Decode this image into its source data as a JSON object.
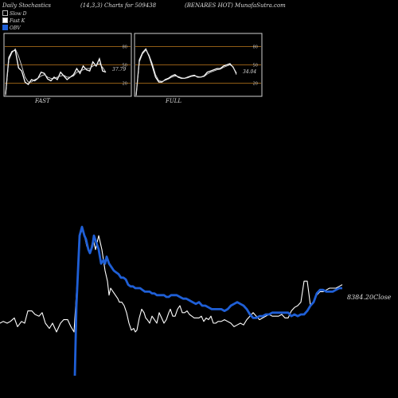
{
  "header": {
    "left": "Daily Stochastics",
    "center": "(14,3,3) Charts for 509438",
    "right": "(BENARES HOT) MunafaSutra.com"
  },
  "legend": [
    {
      "label": "Slow D",
      "color": "#000000"
    },
    {
      "label": "Fast K",
      "color": "#ffffff"
    },
    {
      "label": "OBV",
      "color": "#1f5fd6"
    }
  ],
  "colors": {
    "background": "#000000",
    "grid": "#c07a1c",
    "stoch": "#ffffff",
    "obv": "#1f5fd6",
    "close": "#ffffff"
  },
  "chart_data": [
    {
      "type": "line",
      "title": "FAST",
      "ylim": [
        0,
        100
      ],
      "yticks": [
        20,
        50,
        80
      ],
      "last_value_label": "37.79",
      "series": [
        {
          "name": "Fast K",
          "values": [
            2,
            62,
            72,
            74,
            45,
            40,
            22,
            18,
            26,
            24,
            28,
            38,
            36,
            27,
            24,
            30,
            26,
            38,
            32,
            26,
            30,
            34,
            44,
            36,
            48,
            42,
            40,
            55,
            48,
            60,
            40,
            38
          ]
        },
        {
          "name": "Slow D",
          "values": [
            0,
            58,
            70,
            76,
            64,
            48,
            30,
            22,
            22,
            26,
            28,
            32,
            34,
            30,
            28,
            28,
            30,
            32,
            33,
            30,
            30,
            32,
            38,
            40,
            42,
            44,
            44,
            48,
            50,
            52,
            46,
            38
          ]
        }
      ]
    },
    {
      "type": "line",
      "title": "FULL",
      "ylim": [
        0,
        100
      ],
      "yticks": [
        20,
        50,
        80
      ],
      "last_value_label": "34.04",
      "series": [
        {
          "name": "Fast K",
          "values": [
            0,
            58,
            70,
            76,
            64,
            48,
            30,
            22,
            22,
            26,
            28,
            32,
            34,
            30,
            28,
            28,
            30,
            32,
            33,
            30,
            30,
            32,
            38,
            40,
            42,
            44,
            44,
            48,
            50,
            52,
            46,
            36
          ]
        },
        {
          "name": "Slow D",
          "values": [
            0,
            55,
            68,
            74,
            66,
            52,
            34,
            24,
            23,
            25,
            27,
            30,
            32,
            31,
            29,
            28,
            29,
            31,
            32,
            31,
            30,
            31,
            35,
            38,
            40,
            42,
            43,
            46,
            48,
            50,
            47,
            34
          ]
        }
      ]
    },
    {
      "type": "line",
      "title": "",
      "ylim": [
        0,
        100
      ],
      "close_label": "8384.20Close",
      "series": [
        {
          "name": "Close",
          "x": [
            0,
            4,
            9,
            13,
            18,
            22,
            27,
            31,
            35,
            40,
            44,
            49,
            53,
            57,
            62,
            66,
            71,
            76,
            80,
            85,
            89,
            93,
            98,
            100,
            102,
            104,
            106,
            108,
            109,
            111,
            113,
            115,
            117,
            120,
            122,
            124,
            126,
            128,
            130,
            132,
            135,
            137,
            139,
            142,
            145,
            148,
            150,
            153,
            156,
            159,
            162,
            165,
            168,
            170,
            172,
            175,
            178,
            181,
            183,
            185,
            188,
            191,
            194,
            197,
            200,
            203,
            206,
            209,
            212,
            214,
            217,
            220,
            223,
            226,
            229,
            232,
            235,
            238,
            241,
            244,
            247,
            250,
            253,
            256,
            259,
            262,
            265,
            268,
            271,
            274,
            278,
            282,
            286,
            290,
            294,
            298,
            302,
            306,
            310,
            314,
            318,
            322,
            326,
            330,
            334,
            338,
            342,
            346,
            350,
            354,
            358,
            362,
            366,
            370,
            374,
            378,
            382,
            386,
            390,
            394,
            398,
            402,
            406,
            410,
            414,
            418,
            422,
            426,
            430
          ],
          "values": [
            30,
            31,
            30,
            31,
            33,
            28,
            31,
            30,
            37,
            37,
            35,
            34,
            36,
            30,
            27,
            30,
            25,
            30,
            32,
            32,
            28,
            25,
            62,
            80,
            82,
            84,
            80,
            76,
            74,
            72,
            70,
            74,
            78,
            72,
            76,
            80,
            76,
            72,
            66,
            60,
            54,
            46,
            50,
            48,
            46,
            44,
            42,
            42,
            40,
            36,
            30,
            26,
            27,
            25,
            26,
            33,
            38,
            36,
            33,
            32,
            30,
            34,
            32,
            30,
            36,
            33,
            30,
            32,
            36,
            38,
            34,
            34,
            38,
            40,
            36,
            36,
            37,
            35,
            34,
            33,
            33,
            33,
            34,
            31,
            33,
            32,
            34,
            30,
            30,
            31,
            31,
            32,
            31,
            30,
            28,
            29,
            30,
            29,
            32,
            34,
            36,
            34,
            32,
            33,
            34,
            35,
            34,
            34,
            34,
            35,
            33,
            33,
            37,
            39,
            40,
            42,
            54,
            54,
            40,
            42,
            46,
            48,
            48,
            49,
            50,
            50,
            50,
            51,
            52
          ]
        },
        {
          "name": "OBV",
          "x": [
            94,
            96,
            98,
            100,
            103,
            106,
            108,
            111,
            113,
            116,
            118,
            121,
            124,
            127,
            130,
            132,
            134,
            137,
            140,
            143,
            146,
            149,
            152,
            155,
            158,
            161,
            164,
            167,
            170,
            173,
            176,
            179,
            182,
            185,
            188,
            191,
            194,
            197,
            200,
            203,
            206,
            209,
            212,
            215,
            218,
            222,
            226,
            230,
            234,
            238,
            242,
            246,
            250,
            254,
            258,
            262,
            266,
            270,
            274,
            278,
            282,
            286,
            290,
            294,
            298,
            302,
            306,
            310,
            314,
            318,
            322,
            326,
            330,
            334,
            338,
            342,
            346,
            350,
            354,
            358,
            362,
            366,
            370,
            374,
            378,
            382,
            386,
            390,
            394,
            398,
            402,
            406,
            410,
            414,
            418,
            422,
            426,
            430
          ],
          "values": [
            0,
            40,
            60,
            80,
            85,
            80,
            78,
            72,
            70,
            74,
            80,
            76,
            72,
            64,
            66,
            64,
            68,
            64,
            62,
            60,
            59,
            58,
            56,
            56,
            55,
            52,
            51,
            51,
            50,
            50,
            50,
            49,
            48,
            48,
            48,
            47,
            47,
            46,
            46,
            46,
            46,
            45,
            45,
            46,
            46,
            46,
            45,
            44,
            44,
            43,
            42,
            41,
            42,
            40,
            40,
            39,
            38,
            38,
            38,
            38,
            37,
            38,
            40,
            41,
            42,
            41,
            40,
            38,
            35,
            33,
            33,
            34,
            34,
            35,
            35,
            36,
            36,
            36,
            36,
            36,
            36,
            34,
            35,
            34,
            35,
            35,
            37,
            40,
            42,
            47,
            49,
            49,
            48,
            48,
            48,
            49,
            50,
            50
          ]
        }
      ]
    }
  ]
}
